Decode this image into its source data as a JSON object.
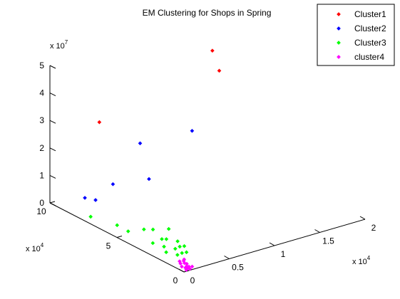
{
  "chart_data": {
    "type": "scatter",
    "title": "EM Clustering for Shops in Spring",
    "multiplier_x": {
      "base": "x 10",
      "exp": "4"
    },
    "multiplier_y": {
      "base": "x 10",
      "exp": "4"
    },
    "multiplier_z": {
      "base": "x 10",
      "exp": "7"
    },
    "x_ticks": [
      "0",
      "0.5",
      "1",
      "1.5",
      "2"
    ],
    "y_ticks": [
      "0",
      "5",
      "10"
    ],
    "z_ticks": [
      "0",
      "1",
      "2",
      "3",
      "4",
      "5"
    ],
    "xlim": [
      0,
      20000
    ],
    "ylim": [
      0,
      100000
    ],
    "zlim": [
      0,
      50000000
    ],
    "legend_position": "top-right",
    "series": [
      {
        "name": "Cluster1",
        "color": "#ff0000",
        "points": [
          [
            15000,
            75000,
            40000000
          ],
          [
            13500,
            70000,
            50000000
          ],
          [
            2500,
            80000,
            32000000
          ]
        ]
      },
      {
        "name": "Cluster2",
        "color": "#0000ff",
        "points": [
          [
            12000,
            75000,
            21000000
          ],
          [
            7000,
            80000,
            20000000
          ],
          [
            6500,
            70000,
            10000000
          ],
          [
            4000,
            80000,
            8000000
          ],
          [
            600,
            70000,
            8000000
          ],
          [
            900,
            80000,
            6000000
          ]
        ]
      },
      {
        "name": "Cluster3",
        "color": "#00ff00",
        "points": [
          [
            500,
            45000,
            3000000
          ],
          [
            1500,
            40000,
            4000000
          ],
          [
            2500,
            40000,
            3000000
          ],
          [
            3500,
            35000,
            3500000
          ],
          [
            1000,
            30000,
            2000000
          ],
          [
            2000,
            30000,
            2500000
          ],
          [
            2500,
            30000,
            2000000
          ],
          [
            3000,
            25000,
            2000000
          ],
          [
            1500,
            25000,
            1500000
          ],
          [
            2000,
            20000,
            1500000
          ],
          [
            2500,
            20000,
            1800000
          ],
          [
            1000,
            20000,
            1200000
          ],
          [
            1500,
            15000,
            1000000
          ],
          [
            2000,
            15000,
            1200000
          ],
          [
            2500,
            15000,
            1000000
          ],
          [
            3000,
            20000,
            1500000
          ],
          [
            800,
            75000,
            500000
          ],
          [
            1500,
            60000,
            500000
          ]
        ]
      },
      {
        "name": "cluster4",
        "color": "#ff00ff",
        "points": [
          [
            500,
            5000,
            200000
          ],
          [
            800,
            8000,
            300000
          ],
          [
            1000,
            10000,
            400000
          ],
          [
            1200,
            6000,
            300000
          ],
          [
            600,
            3000,
            200000
          ],
          [
            900,
            4000,
            300000
          ],
          [
            1100,
            7000,
            400000
          ],
          [
            700,
            2000,
            100000
          ],
          [
            400,
            1000,
            100000
          ],
          [
            1300,
            9000,
            500000
          ],
          [
            1000,
            3000,
            200000
          ],
          [
            800,
            1000,
            100000
          ],
          [
            1500,
            10000,
            600000
          ],
          [
            1200,
            2000,
            300000
          ]
        ]
      }
    ]
  }
}
